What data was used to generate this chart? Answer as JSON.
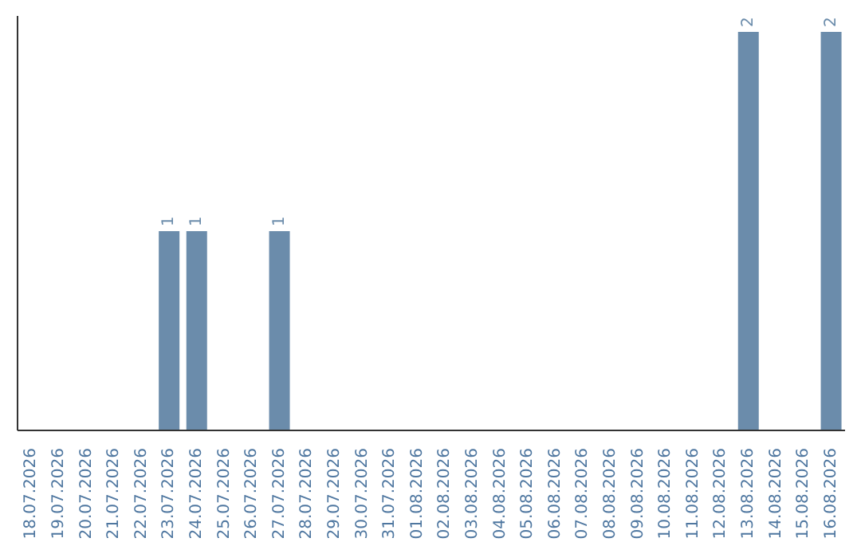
{
  "chart_data": {
    "type": "bar",
    "categories": [
      "18.07.2026",
      "19.07.2026",
      "20.07.2026",
      "21.07.2026",
      "22.07.2026",
      "23.07.2026",
      "24.07.2026",
      "25.07.2026",
      "26.07.2026",
      "27.07.2026",
      "28.07.2026",
      "29.07.2026",
      "30.07.2026",
      "31.07.2026",
      "01.08.2026",
      "02.08.2026",
      "03.08.2026",
      "04.08.2026",
      "05.08.2026",
      "06.08.2026",
      "07.08.2026",
      "08.08.2026",
      "09.08.2026",
      "10.08.2026",
      "11.08.2026",
      "12.08.2026",
      "13.08.2026",
      "14.08.2026",
      "15.08.2026",
      "16.08.2026"
    ],
    "values": [
      0,
      0,
      0,
      0,
      0,
      1,
      1,
      0,
      0,
      1,
      0,
      0,
      0,
      0,
      0,
      0,
      0,
      0,
      0,
      0,
      0,
      0,
      0,
      0,
      0,
      0,
      2,
      0,
      0,
      2
    ],
    "value_labels": [
      null,
      null,
      null,
      null,
      null,
      "1",
      "1",
      null,
      null,
      "1",
      null,
      null,
      null,
      null,
      null,
      null,
      null,
      null,
      null,
      null,
      null,
      null,
      null,
      null,
      null,
      null,
      "2",
      null,
      null,
      "2"
    ],
    "color": "#6b8cab",
    "ylim": [
      0,
      2.08
    ],
    "grid": false,
    "legend": false
  }
}
